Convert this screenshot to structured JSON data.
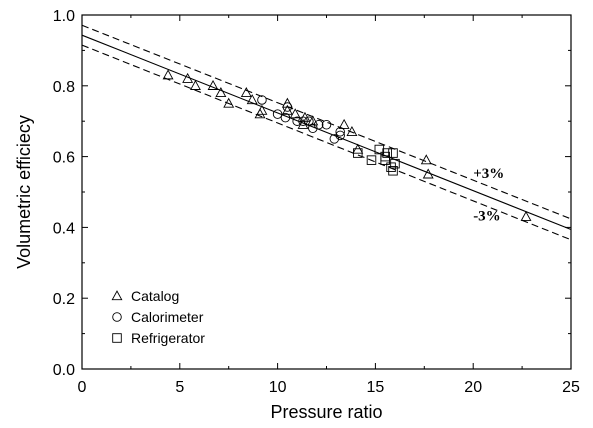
{
  "chart_data": {
    "type": "scatter",
    "xlabel": "Pressure ratio",
    "ylabel": "Volumetric efficiecy",
    "xlim": [
      0,
      25
    ],
    "ylim": [
      0.0,
      1.0
    ],
    "xticks": [
      "0",
      "5",
      "10",
      "15",
      "20",
      "25"
    ],
    "yticks": [
      "0.0",
      "0.2",
      "0.4",
      "0.6",
      "0.8",
      "1.0"
    ],
    "grid": false,
    "legend_position": "bottom-left",
    "series": [
      {
        "name": "Catalog",
        "marker": "triangle",
        "points": [
          [
            4.4,
            0.83
          ],
          [
            5.4,
            0.82
          ],
          [
            5.8,
            0.8
          ],
          [
            6.7,
            0.8
          ],
          [
            7.1,
            0.78
          ],
          [
            7.5,
            0.75
          ],
          [
            8.4,
            0.78
          ],
          [
            8.7,
            0.76
          ],
          [
            9.1,
            0.72
          ],
          [
            9.2,
            0.73
          ],
          [
            10.5,
            0.75
          ],
          [
            10.5,
            0.73
          ],
          [
            10.9,
            0.72
          ],
          [
            11.3,
            0.69
          ],
          [
            11.4,
            0.71
          ],
          [
            11.8,
            0.7
          ],
          [
            13.4,
            0.69
          ],
          [
            13.8,
            0.67
          ],
          [
            14.1,
            0.62
          ],
          [
            17.6,
            0.59
          ],
          [
            17.7,
            0.55
          ],
          [
            22.7,
            0.43
          ]
        ]
      },
      {
        "name": "Calorimeter",
        "marker": "circle",
        "points": [
          [
            9.2,
            0.76
          ],
          [
            10.0,
            0.72
          ],
          [
            10.4,
            0.71
          ],
          [
            10.5,
            0.74
          ],
          [
            11.0,
            0.7
          ],
          [
            11.3,
            0.7
          ],
          [
            11.6,
            0.7
          ],
          [
            11.8,
            0.68
          ],
          [
            12.1,
            0.69
          ],
          [
            12.5,
            0.69
          ],
          [
            12.9,
            0.65
          ],
          [
            13.2,
            0.67
          ],
          [
            13.2,
            0.66
          ]
        ]
      },
      {
        "name": "Refrigerator",
        "marker": "square",
        "points": [
          [
            14.1,
            0.61
          ],
          [
            14.8,
            0.59
          ],
          [
            15.2,
            0.62
          ],
          [
            15.5,
            0.6
          ],
          [
            15.6,
            0.61
          ],
          [
            15.5,
            0.59
          ],
          [
            15.8,
            0.57
          ],
          [
            15.9,
            0.56
          ],
          [
            15.9,
            0.61
          ],
          [
            16.0,
            0.58
          ]
        ]
      }
    ],
    "lines": [
      {
        "name": "fit",
        "style": "solid",
        "x": [
          0,
          25
        ],
        "y": [
          0.943,
          0.394
        ]
      },
      {
        "name": "upper",
        "style": "dashed",
        "x": [
          0,
          25
        ],
        "y": [
          0.971,
          0.424
        ]
      },
      {
        "name": "lower",
        "style": "dashed",
        "x": [
          0,
          25
        ],
        "y": [
          0.915,
          0.365
        ]
      }
    ],
    "annotations": [
      {
        "text": "+3%",
        "x": 20.0,
        "y": 0.54
      },
      {
        "text": "-3%",
        "x": 20.0,
        "y": 0.42
      }
    ]
  }
}
